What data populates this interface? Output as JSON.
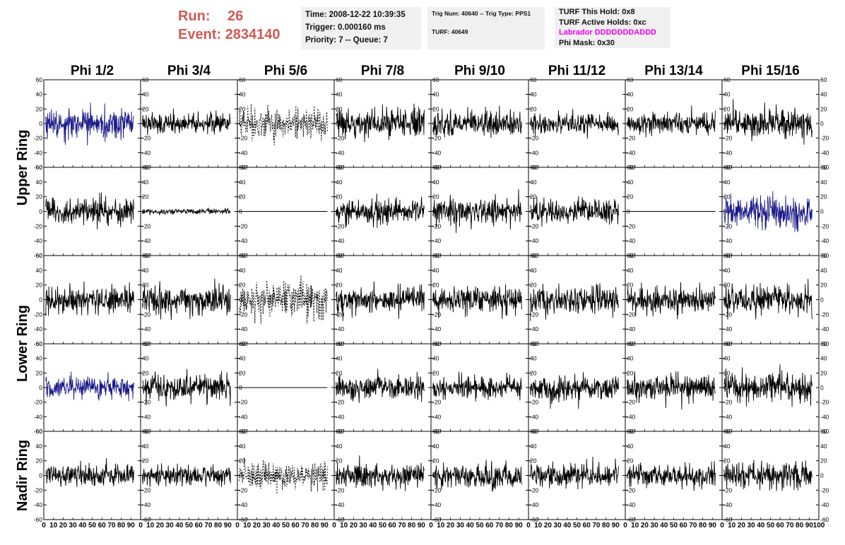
{
  "header": {
    "run_label": "Run:",
    "run_value": "26",
    "event_label": "Event:",
    "event_value": "2834140",
    "time": "Time: 2008-12-22 10:39:35",
    "trigger": "Trigger: 0.000160 ms",
    "priority": "Priority: 7 -- Queue: 7",
    "trig_num": "Trig Num: 40640 -- Trig Type: PPS1",
    "turf": "TURF: 40649",
    "turf_this_hold": "TURF This Hold: 0x8",
    "turf_active_holds": "TURF Active Holds: 0xc",
    "labrador": "Labrador DDDDDDDADDD",
    "phi_mask": "Phi Mask: 0x30"
  },
  "colors": {
    "run_text": "#d05a55",
    "labrador_text": "#ee00ee",
    "trace": "#000000",
    "highlight_trace": "#1a1a8a"
  },
  "chart_data": {
    "type": "line",
    "columns": [
      "Phi 1/2",
      "Phi 3/4",
      "Phi 5/6",
      "Phi 7/8",
      "Phi 9/10",
      "Phi 11/12",
      "Phi 13/14",
      "Phi 15/16"
    ],
    "ring_labels": [
      {
        "label": "Upper Ring",
        "rows": [
          0,
          1
        ]
      },
      {
        "label": "Lower Ring",
        "rows": [
          2,
          3
        ]
      },
      {
        "label": "Nadir Ring",
        "rows": [
          4
        ]
      }
    ],
    "xlim": [
      0,
      100
    ],
    "ylim": [
      -60,
      60
    ],
    "y_ticks": [
      -60,
      -40,
      -20,
      0,
      20,
      40,
      60
    ],
    "y_tick_labels": [
      "-60",
      "-40",
      "-20",
      "0",
      "20",
      "40",
      "60"
    ],
    "x_ticks": [
      0,
      10,
      20,
      30,
      40,
      50,
      60,
      70,
      80,
      90,
      100
    ],
    "x_tick_labels": [
      "0",
      "10",
      "20",
      "30",
      "40",
      "50",
      "60",
      "70",
      "80",
      "90",
      "100"
    ],
    "sample_range": [
      2,
      93
    ],
    "panels": [
      [
        {
          "amp": 14,
          "style": "highlight"
        },
        {
          "amp": 9,
          "style": "solid"
        },
        {
          "amp": 14,
          "style": "dotted"
        },
        {
          "amp": 13,
          "style": "solid"
        },
        {
          "amp": 12,
          "style": "solid"
        },
        {
          "amp": 9,
          "style": "solid"
        },
        {
          "amp": 10,
          "style": "solid"
        },
        {
          "amp": 13,
          "style": "solid"
        }
      ],
      [
        {
          "amp": 12,
          "style": "solid"
        },
        {
          "amp": 2.5,
          "style": "solid"
        },
        {
          "amp": 0,
          "style": "flat"
        },
        {
          "amp": 11,
          "style": "solid"
        },
        {
          "amp": 12,
          "style": "solid"
        },
        {
          "amp": 11,
          "style": "solid"
        },
        {
          "amp": 0,
          "style": "flat"
        },
        {
          "amp": 14,
          "style": "highlight"
        }
      ],
      [
        {
          "amp": 12,
          "style": "solid"
        },
        {
          "amp": 13,
          "style": "solid"
        },
        {
          "amp": 16,
          "style": "dotted"
        },
        {
          "amp": 12,
          "style": "solid"
        },
        {
          "amp": 12,
          "style": "solid"
        },
        {
          "amp": 13,
          "style": "solid"
        },
        {
          "amp": 12,
          "style": "solid"
        },
        {
          "amp": 13,
          "style": "solid"
        }
      ],
      [
        {
          "amp": 10,
          "style": "highlight"
        },
        {
          "amp": 12,
          "style": "solid"
        },
        {
          "amp": 0,
          "style": "flat"
        },
        {
          "amp": 11,
          "style": "solid"
        },
        {
          "amp": 10,
          "style": "solid"
        },
        {
          "amp": 12,
          "style": "solid"
        },
        {
          "amp": 12,
          "style": "solid"
        },
        {
          "amp": 13,
          "style": "solid"
        }
      ],
      [
        {
          "amp": 10,
          "style": "solid"
        },
        {
          "amp": 9,
          "style": "solid"
        },
        {
          "amp": 12,
          "style": "dotted"
        },
        {
          "amp": 11,
          "style": "solid"
        },
        {
          "amp": 11,
          "style": "solid"
        },
        {
          "amp": 11,
          "style": "solid"
        },
        {
          "amp": 10,
          "style": "solid"
        },
        {
          "amp": 12,
          "style": "solid"
        }
      ]
    ]
  }
}
